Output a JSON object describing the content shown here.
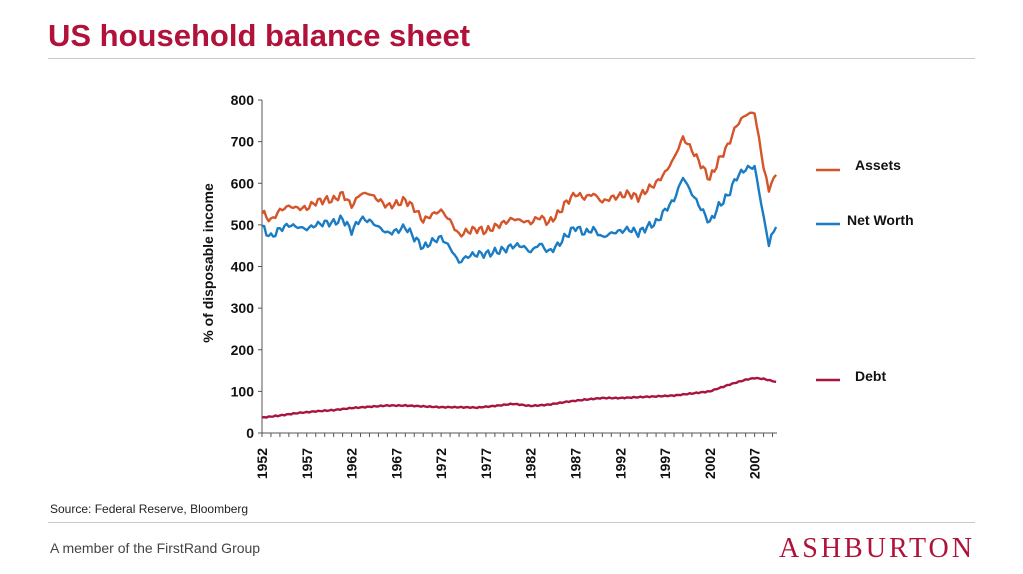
{
  "header": {
    "title": "US household balance sheet"
  },
  "source": "Source: Federal Reserve, Bloomberg",
  "footer": {
    "tagline": "A member of the FirstRand Group",
    "logo_text": "ASHBURTON"
  },
  "colors": {
    "accent": "#b0123a",
    "assets": "#d4552a",
    "net_worth": "#1a7cc4",
    "debt": "#a8143e"
  },
  "chart_data": {
    "type": "line",
    "title": "",
    "xlabel": "",
    "ylabel": "% of disposable income",
    "xlim": [
      1952,
      2009.5
    ],
    "ylim": [
      0,
      800
    ],
    "y_ticks": [
      0,
      100,
      200,
      300,
      400,
      500,
      600,
      700,
      800
    ],
    "x_tick_labels": [
      "1952",
      "1957",
      "1962",
      "1967",
      "1972",
      "1977",
      "1982",
      "1987",
      "1992",
      "1997",
      "2002",
      "2007"
    ],
    "grid": false,
    "legend": "right",
    "series": [
      {
        "name": "Assets",
        "color": "#d4552a",
        "points": [
          [
            1952,
            530
          ],
          [
            1953,
            510
          ],
          [
            1954,
            535
          ],
          [
            1955,
            545
          ],
          [
            1956,
            540
          ],
          [
            1957,
            540
          ],
          [
            1958,
            555
          ],
          [
            1959,
            560
          ],
          [
            1960,
            560
          ],
          [
            1961,
            575
          ],
          [
            1962,
            545
          ],
          [
            1963,
            575
          ],
          [
            1964,
            575
          ],
          [
            1965,
            560
          ],
          [
            1966,
            545
          ],
          [
            1967,
            550
          ],
          [
            1968,
            560
          ],
          [
            1969,
            540
          ],
          [
            1970,
            510
          ],
          [
            1971,
            525
          ],
          [
            1972,
            535
          ],
          [
            1973,
            510
          ],
          [
            1974,
            475
          ],
          [
            1975,
            485
          ],
          [
            1976,
            490
          ],
          [
            1977,
            485
          ],
          [
            1978,
            495
          ],
          [
            1979,
            505
          ],
          [
            1980,
            515
          ],
          [
            1981,
            510
          ],
          [
            1982,
            505
          ],
          [
            1983,
            520
          ],
          [
            1984,
            505
          ],
          [
            1985,
            525
          ],
          [
            1986,
            555
          ],
          [
            1987,
            575
          ],
          [
            1988,
            565
          ],
          [
            1989,
            575
          ],
          [
            1990,
            555
          ],
          [
            1991,
            565
          ],
          [
            1992,
            570
          ],
          [
            1993,
            575
          ],
          [
            1994,
            565
          ],
          [
            1995,
            585
          ],
          [
            1996,
            600
          ],
          [
            1997,
            625
          ],
          [
            1998,
            660
          ],
          [
            1999,
            710
          ],
          [
            2000,
            680
          ],
          [
            2001,
            645
          ],
          [
            2002,
            610
          ],
          [
            2003,
            655
          ],
          [
            2004,
            690
          ],
          [
            2005,
            740
          ],
          [
            2006,
            765
          ],
          [
            2007,
            770
          ],
          [
            2008,
            640
          ],
          [
            2008.6,
            585
          ],
          [
            2009.4,
            620
          ]
        ]
      },
      {
        "name": "Net Worth",
        "color": "#1a7cc4",
        "points": [
          [
            1952,
            495
          ],
          [
            1953,
            470
          ],
          [
            1954,
            490
          ],
          [
            1955,
            500
          ],
          [
            1956,
            495
          ],
          [
            1957,
            490
          ],
          [
            1958,
            500
          ],
          [
            1959,
            505
          ],
          [
            1960,
            505
          ],
          [
            1961,
            515
          ],
          [
            1962,
            485
          ],
          [
            1963,
            515
          ],
          [
            1964,
            510
          ],
          [
            1965,
            495
          ],
          [
            1966,
            480
          ],
          [
            1967,
            485
          ],
          [
            1968,
            495
          ],
          [
            1969,
            470
          ],
          [
            1970,
            445
          ],
          [
            1971,
            460
          ],
          [
            1972,
            470
          ],
          [
            1973,
            445
          ],
          [
            1974,
            410
          ],
          [
            1975,
            425
          ],
          [
            1976,
            430
          ],
          [
            1977,
            430
          ],
          [
            1978,
            435
          ],
          [
            1979,
            440
          ],
          [
            1980,
            450
          ],
          [
            1981,
            450
          ],
          [
            1982,
            435
          ],
          [
            1983,
            455
          ],
          [
            1984,
            435
          ],
          [
            1985,
            450
          ],
          [
            1986,
            475
          ],
          [
            1987,
            495
          ],
          [
            1988,
            480
          ],
          [
            1989,
            490
          ],
          [
            1990,
            470
          ],
          [
            1991,
            480
          ],
          [
            1992,
            485
          ],
          [
            1993,
            490
          ],
          [
            1994,
            480
          ],
          [
            1995,
            495
          ],
          [
            1996,
            505
          ],
          [
            1997,
            535
          ],
          [
            1998,
            560
          ],
          [
            1999,
            615
          ],
          [
            2000,
            575
          ],
          [
            2001,
            540
          ],
          [
            2002,
            505
          ],
          [
            2003,
            545
          ],
          [
            2004,
            570
          ],
          [
            2005,
            615
          ],
          [
            2006,
            635
          ],
          [
            2007,
            640
          ],
          [
            2008,
            520
          ],
          [
            2008.6,
            455
          ],
          [
            2009.4,
            495
          ]
        ]
      },
      {
        "name": "Debt",
        "color": "#a8143e",
        "points": [
          [
            1952,
            37
          ],
          [
            1954,
            42
          ],
          [
            1956,
            48
          ],
          [
            1958,
            52
          ],
          [
            1960,
            55
          ],
          [
            1962,
            60
          ],
          [
            1964,
            63
          ],
          [
            1966,
            66
          ],
          [
            1968,
            66
          ],
          [
            1970,
            64
          ],
          [
            1972,
            62
          ],
          [
            1974,
            62
          ],
          [
            1976,
            61
          ],
          [
            1978,
            65
          ],
          [
            1980,
            70
          ],
          [
            1982,
            65
          ],
          [
            1984,
            68
          ],
          [
            1986,
            75
          ],
          [
            1988,
            80
          ],
          [
            1990,
            84
          ],
          [
            1992,
            84
          ],
          [
            1994,
            86
          ],
          [
            1996,
            88
          ],
          [
            1998,
            90
          ],
          [
            2000,
            95
          ],
          [
            2002,
            100
          ],
          [
            2004,
            115
          ],
          [
            2006,
            128
          ],
          [
            2007,
            132
          ],
          [
            2008,
            130
          ],
          [
            2009.4,
            123
          ]
        ]
      }
    ]
  }
}
